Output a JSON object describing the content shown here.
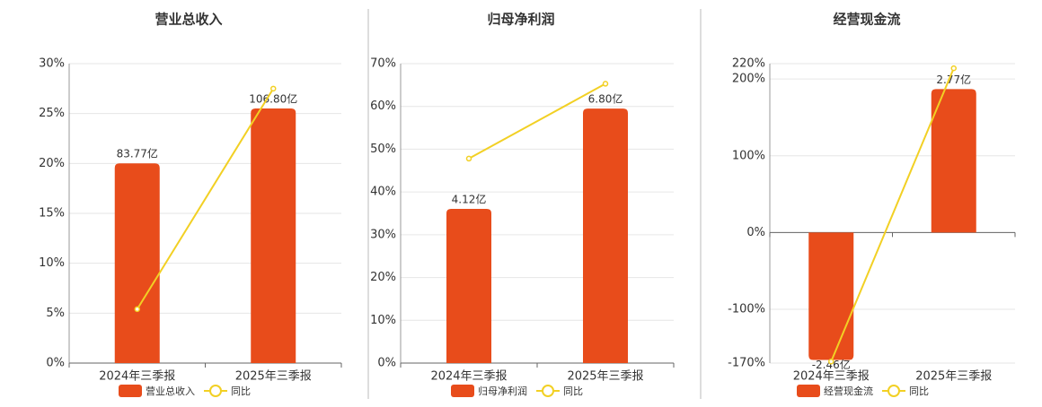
{
  "chart_data": [
    {
      "type": "bar",
      "title": "营业总收入",
      "categories": [
        "2024年三季报",
        "2025年三季报"
      ],
      "series": [
        {
          "name": "营业总收入",
          "color": "#e84c1b",
          "type": "bar",
          "axis": "y2",
          "values": [
            83.77,
            106.8
          ],
          "value_labels": [
            "83.77亿",
            "106.80亿"
          ]
        },
        {
          "name": "同比",
          "color": "#f2d024",
          "type": "line",
          "values": [
            5.4,
            27.5
          ]
        }
      ],
      "ylim": [
        0,
        30
      ],
      "yticks": [
        {
          "value": 0,
          "label": "0%"
        },
        {
          "value": 5,
          "label": "5%"
        },
        {
          "value": 10,
          "label": "10%"
        },
        {
          "value": 15,
          "label": "15%"
        },
        {
          "value": 20,
          "label": "20%"
        },
        {
          "value": 25,
          "label": "25%"
        },
        {
          "value": 30,
          "label": "30%"
        }
      ],
      "y2lim": [
        0,
        125.6
      ],
      "grid": true
    },
    {
      "type": "bar",
      "title": "归母净利润",
      "categories": [
        "2024年三季报",
        "2025年三季报"
      ],
      "series": [
        {
          "name": "归母净利润",
          "color": "#e84c1b",
          "type": "bar",
          "axis": "y2",
          "values": [
            4.12,
            6.8
          ],
          "value_labels": [
            "4.12亿",
            "6.80亿"
          ]
        },
        {
          "name": "同比",
          "color": "#f2d024",
          "type": "line",
          "values": [
            47.8,
            65.3
          ]
        }
      ],
      "ylim": [
        0,
        70
      ],
      "yticks": [
        {
          "value": 0,
          "label": "0%"
        },
        {
          "value": 10,
          "label": "10%"
        },
        {
          "value": 20,
          "label": "20%"
        },
        {
          "value": 30,
          "label": "30%"
        },
        {
          "value": 40,
          "label": "40%"
        },
        {
          "value": 50,
          "label": "50%"
        },
        {
          "value": 60,
          "label": "60%"
        },
        {
          "value": 70,
          "label": "70%"
        }
      ],
      "y2lim": [
        0,
        8.0
      ],
      "grid": true
    },
    {
      "type": "bar",
      "title": "经营现金流",
      "categories": [
        "2024年三季报",
        "2025年三季报"
      ],
      "series": [
        {
          "name": "经营现金流",
          "color": "#e84c1b",
          "type": "bar",
          "axis": "y2",
          "values": [
            -2.46,
            2.77
          ],
          "value_labels": [
            "-2.46亿",
            "2.77亿"
          ]
        },
        {
          "name": "同比",
          "color": "#f2d024",
          "type": "line",
          "values": [
            -168,
            214
          ]
        }
      ],
      "ylim": [
        -170,
        220
      ],
      "yticks": [
        {
          "value": -170,
          "label": "-170%"
        },
        {
          "value": -100,
          "label": "-100%"
        },
        {
          "value": 0,
          "label": "0%"
        },
        {
          "value": 100,
          "label": "100%"
        },
        {
          "value": 200,
          "label": "200%"
        },
        {
          "value": 220,
          "label": "220%"
        }
      ],
      "y2lim": [
        -2.52,
        3.26
      ],
      "grid": true
    }
  ]
}
